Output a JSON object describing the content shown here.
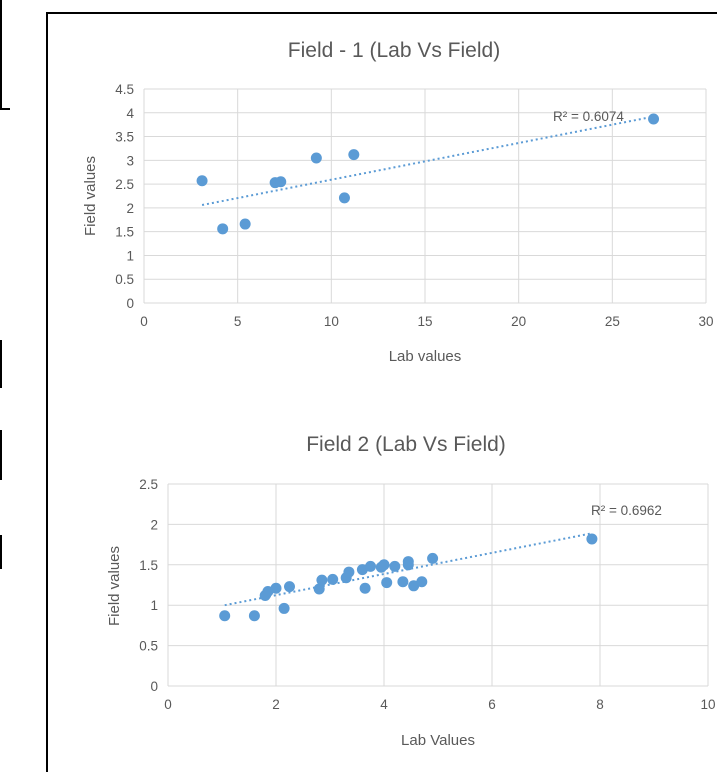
{
  "chart_data": [
    {
      "type": "scatter",
      "title": "Field - 1 (Lab Vs Field)",
      "xlabel": "Lab values",
      "ylabel": "Field values",
      "xlim": [
        0,
        30
      ],
      "ylim": [
        0,
        4.5
      ],
      "x_ticks": [
        "0",
        "5",
        "10",
        "15",
        "20",
        "25",
        "30"
      ],
      "y_ticks": [
        "0",
        "0.5",
        "1",
        "1.5",
        "2",
        "2.5",
        "3",
        "3.5",
        "4",
        "4.5"
      ],
      "points": [
        {
          "x": 3.1,
          "y": 2.57
        },
        {
          "x": 4.2,
          "y": 1.56
        },
        {
          "x": 5.4,
          "y": 1.66
        },
        {
          "x": 7.0,
          "y": 2.53
        },
        {
          "x": 7.3,
          "y": 2.55
        },
        {
          "x": 9.2,
          "y": 3.05
        },
        {
          "x": 10.7,
          "y": 2.21
        },
        {
          "x": 11.2,
          "y": 3.12
        },
        {
          "x": 27.2,
          "y": 3.87
        }
      ],
      "trendline": {
        "type": "linear",
        "x0": 3.1,
        "y0": 2.06,
        "x1": 27.2,
        "y1": 3.92
      },
      "r2_label": "R² = 0.6074",
      "grid": true,
      "color": "#5b9bd5"
    },
    {
      "type": "scatter",
      "title": "Field 2 (Lab Vs Field)",
      "xlabel": "Lab Values",
      "ylabel": "Field values",
      "xlim": [
        0,
        10
      ],
      "ylim": [
        0,
        2.5
      ],
      "x_ticks": [
        "0",
        "2",
        "4",
        "6",
        "8",
        "10"
      ],
      "y_ticks": [
        "0",
        "0.5",
        "1",
        "1.5",
        "2",
        "2.5"
      ],
      "points": [
        {
          "x": 1.05,
          "y": 0.87
        },
        {
          "x": 1.6,
          "y": 0.87
        },
        {
          "x": 1.8,
          "y": 1.12
        },
        {
          "x": 1.85,
          "y": 1.17
        },
        {
          "x": 2.0,
          "y": 1.21
        },
        {
          "x": 2.15,
          "y": 0.96
        },
        {
          "x": 2.25,
          "y": 1.23
        },
        {
          "x": 2.8,
          "y": 1.2
        },
        {
          "x": 2.85,
          "y": 1.31
        },
        {
          "x": 3.05,
          "y": 1.32
        },
        {
          "x": 3.3,
          "y": 1.34
        },
        {
          "x": 3.35,
          "y": 1.41
        },
        {
          "x": 3.6,
          "y": 1.44
        },
        {
          "x": 3.65,
          "y": 1.21
        },
        {
          "x": 3.75,
          "y": 1.48
        },
        {
          "x": 3.95,
          "y": 1.47
        },
        {
          "x": 4.0,
          "y": 1.5
        },
        {
          "x": 4.05,
          "y": 1.28
        },
        {
          "x": 4.2,
          "y": 1.48
        },
        {
          "x": 4.35,
          "y": 1.29
        },
        {
          "x": 4.45,
          "y": 1.5
        },
        {
          "x": 4.45,
          "y": 1.54
        },
        {
          "x": 4.55,
          "y": 1.24
        },
        {
          "x": 4.7,
          "y": 1.29
        },
        {
          "x": 4.9,
          "y": 1.58
        },
        {
          "x": 7.85,
          "y": 1.82
        }
      ],
      "trendline": {
        "type": "linear",
        "x0": 1.05,
        "y0": 1.0,
        "x1": 7.85,
        "y1": 1.89
      },
      "r2_label": "R² = 0.6962",
      "grid": true,
      "color": "#5b9bd5"
    }
  ]
}
